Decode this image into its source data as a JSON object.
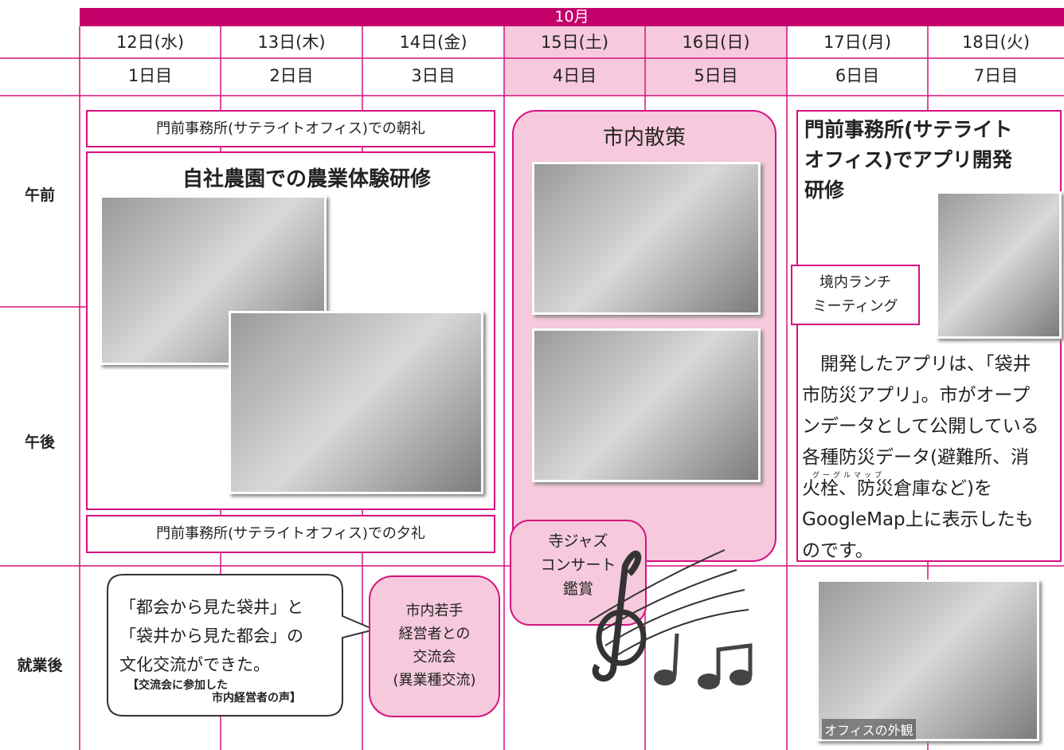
{
  "header": {
    "month": "10月"
  },
  "days": [
    {
      "date": "12日(水)",
      "day": "1日目"
    },
    {
      "date": "13日(木)",
      "day": "2日目"
    },
    {
      "date": "14日(金)",
      "day": "3日目"
    },
    {
      "date": "15日(土)",
      "day": "4日目"
    },
    {
      "date": "16日(日)",
      "day": "5日目"
    },
    {
      "date": "17日(月)",
      "day": "6日目"
    },
    {
      "date": "18日(火)",
      "day": "7日目"
    }
  ],
  "periods": [
    "午前",
    "午後",
    "就業後"
  ],
  "events": {
    "morning_meeting": "門前事務所(サテライトオフィス)での朝礼",
    "farm_title": "自社農園での農業体験研修",
    "evening_meeting": "門前事務所(サテライトオフィス)での夕礼",
    "walk_title": "市内散策",
    "jazz": [
      "寺ジャズ",
      "コンサート",
      "鑑賞"
    ],
    "app_title": [
      "門前事務所(サテライト",
      "オフィス)でアプリ開発",
      "研修"
    ],
    "lunch": [
      "境内ランチ",
      "ミーティング"
    ],
    "app_body": [
      "　開発したアプリは、「袋井",
      "市防災アプリ」。市がオープ",
      "ンデータとして公開している",
      "各種防災データ(避難所、消",
      "火栓、防災倉庫など)を",
      "GoogleMap上に表示したも",
      "のです。"
    ],
    "ruby": "グーグルマップ",
    "voice": [
      "「都会から見た袋井」と",
      "「袋井から見た都会」の",
      "文化交流ができた。"
    ],
    "voice_source": [
      "【交流会に参加した",
      "市内経営者の声】"
    ],
    "managers": [
      "市内若手",
      "経営者との",
      "交流会",
      "(異業種交流)"
    ],
    "office_caption": "オフィスの外観"
  }
}
